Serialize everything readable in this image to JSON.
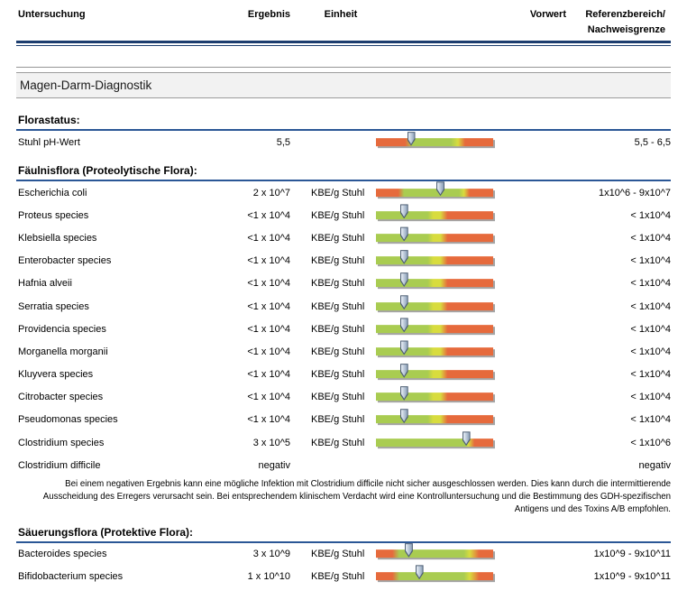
{
  "header": {
    "columns": {
      "untersuchung": "Untersuchung",
      "ergebnis": "Ergebnis",
      "einheit": "Einheit",
      "vorwert": "Vorwert",
      "referenz_line1": "Referenzbereich/",
      "referenz_line2": "Nachweisgrenze"
    }
  },
  "banner": {
    "title": "Magen-Darm-Diagnostik"
  },
  "colors": {
    "rule_navy": "#1C3D6E",
    "section_line_blue": "#2B5796",
    "thin_gray_line": "#969696",
    "banner_bg": "#F2F2F2",
    "banner_border": "#9C9C9C",
    "bar_red": "#E66A3C",
    "bar_green": "#A9CC51",
    "bar_yellow": "#D8DC3E",
    "bar_shadow": "#A5A5A5",
    "marker_fill_light": "#E9EFF6",
    "marker_fill_dark": "#8BA0B9",
    "marker_border": "#4F6075"
  },
  "bar_presets": {
    "ph": {
      "stops": [
        [
          "red",
          0
        ],
        [
          "red",
          25
        ],
        [
          "green",
          31
        ],
        [
          "green",
          64
        ],
        [
          "yellow",
          70
        ],
        [
          "red",
          76
        ],
        [
          "red",
          100
        ]
      ]
    },
    "mid": {
      "stops": [
        [
          "red",
          0
        ],
        [
          "red",
          19
        ],
        [
          "green",
          24
        ],
        [
          "green",
          71
        ],
        [
          "yellow",
          75
        ],
        [
          "red",
          80
        ],
        [
          "red",
          100
        ]
      ]
    },
    "low": {
      "stops": [
        [
          "green",
          0
        ],
        [
          "green",
          44
        ],
        [
          "yellow",
          49
        ],
        [
          "yellow",
          55
        ],
        [
          "red",
          61
        ],
        [
          "red",
          100
        ]
      ]
    },
    "high": {
      "stops": [
        [
          "green",
          0
        ],
        [
          "green",
          76
        ],
        [
          "yellow",
          79
        ],
        [
          "red",
          84
        ],
        [
          "red",
          100
        ]
      ]
    },
    "protective": {
      "stops": [
        [
          "red",
          0
        ],
        [
          "red",
          14
        ],
        [
          "green",
          20
        ],
        [
          "green",
          75
        ],
        [
          "yellow",
          80
        ],
        [
          "red",
          88
        ],
        [
          "red",
          100
        ]
      ]
    }
  },
  "sections": [
    {
      "title": "Florastatus:",
      "rows": [
        {
          "name": "Stuhl pH-Wert",
          "result": "5,5",
          "unit": "",
          "bar": {
            "preset": "ph",
            "marker": 30
          },
          "reference": "5,5 - 6,5"
        }
      ]
    },
    {
      "title": "Fäulnisflora (Proteolytische Flora):",
      "rows": [
        {
          "name": "Escherichia coli",
          "result": "2 x 10^7",
          "unit": "KBE/g Stuhl",
          "bar": {
            "preset": "mid",
            "marker": 55
          },
          "reference": "1x10^6 - 9x10^7"
        },
        {
          "name": "Proteus species",
          "result": "<1 x 10^4",
          "unit": "KBE/g Stuhl",
          "bar": {
            "preset": "low",
            "marker": 24
          },
          "reference": "< 1x10^4"
        },
        {
          "name": "Klebsiella species",
          "result": "<1 x 10^4",
          "unit": "KBE/g Stuhl",
          "bar": {
            "preset": "low",
            "marker": 24
          },
          "reference": "< 1x10^4"
        },
        {
          "name": "Enterobacter species",
          "result": "<1 x 10^4",
          "unit": "KBE/g Stuhl",
          "bar": {
            "preset": "low",
            "marker": 24
          },
          "reference": "< 1x10^4"
        },
        {
          "name": "Hafnia alveii",
          "result": "<1 x 10^4",
          "unit": "KBE/g Stuhl",
          "bar": {
            "preset": "low",
            "marker": 24
          },
          "reference": "< 1x10^4"
        },
        {
          "name": "Serratia species",
          "result": "<1 x 10^4",
          "unit": "KBE/g Stuhl",
          "bar": {
            "preset": "low",
            "marker": 24
          },
          "reference": "< 1x10^4"
        },
        {
          "name": "Providencia species",
          "result": "<1 x 10^4",
          "unit": "KBE/g Stuhl",
          "bar": {
            "preset": "low",
            "marker": 24
          },
          "reference": "< 1x10^4"
        },
        {
          "name": "Morganella morganii",
          "result": "<1 x 10^4",
          "unit": "KBE/g Stuhl",
          "bar": {
            "preset": "low",
            "marker": 24
          },
          "reference": "< 1x10^4"
        },
        {
          "name": "Kluyvera species",
          "result": "<1 x 10^4",
          "unit": "KBE/g Stuhl",
          "bar": {
            "preset": "low",
            "marker": 24
          },
          "reference": "< 1x10^4"
        },
        {
          "name": "Citrobacter species",
          "result": "<1 x 10^4",
          "unit": "KBE/g Stuhl",
          "bar": {
            "preset": "low",
            "marker": 24
          },
          "reference": "< 1x10^4"
        },
        {
          "name": "Pseudomonas species",
          "result": "<1 x 10^4",
          "unit": "KBE/g Stuhl",
          "bar": {
            "preset": "low",
            "marker": 24
          },
          "reference": "< 1x10^4"
        },
        {
          "name": "Clostridium species",
          "result": "3 x 10^5",
          "unit": "KBE/g Stuhl",
          "bar": {
            "preset": "high",
            "marker": 77
          },
          "reference": "< 1x10^6"
        },
        {
          "name": "Clostridium difficile",
          "result": "negativ",
          "unit": "",
          "bar": null,
          "reference": "negativ"
        }
      ],
      "footnote": "Bei einem negativen Ergebnis kann eine mögliche Infektion mit Clostridium difficile nicht sicher ausgeschlossen werden. Dies kann durch die intermittierende Ausscheidung des Erregers verursacht sein. Bei entsprechendem klinischem Verdacht wird eine Kontrolluntersuchung und die Bestimmung des GDH-spezifischen Antigens und des Toxins A/B empfohlen."
    },
    {
      "title": "Säuerungsflora (Protektive Flora):",
      "rows": [
        {
          "name": "Bacteroides species",
          "result": "3 x 10^9",
          "unit": "KBE/g Stuhl",
          "bar": {
            "preset": "protective",
            "marker": 28
          },
          "reference": "1x10^9 - 9x10^11"
        },
        {
          "name": "Bifidobacterium species",
          "result": "1 x 10^10",
          "unit": "KBE/g Stuhl",
          "bar": {
            "preset": "protective",
            "marker": 37
          },
          "reference": "1x10^9 - 9x10^11"
        }
      ]
    }
  ]
}
